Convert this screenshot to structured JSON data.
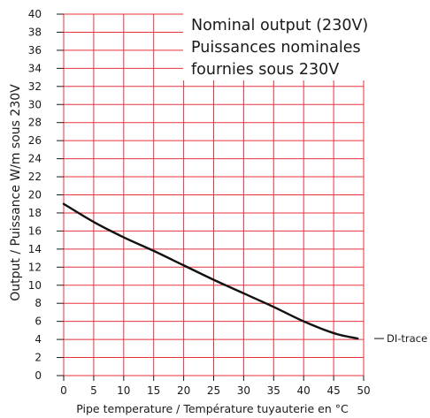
{
  "chart_data": {
    "type": "line",
    "title": "",
    "annotation_lines": [
      "Nominal output (230V)",
      "Puissances nominales",
      "fournies sous 230V"
    ],
    "xlabel": "Pipe temperature  /  Température tuyauterie en °C",
    "ylabel": "Output  /  Puissance W/m sous 230V",
    "xlim": [
      0,
      50
    ],
    "ylim": [
      0,
      40
    ],
    "x_ticks": [
      0,
      5,
      10,
      15,
      20,
      25,
      30,
      35,
      40,
      45,
      50
    ],
    "y_ticks": [
      0,
      2,
      4,
      6,
      8,
      10,
      12,
      14,
      16,
      18,
      20,
      22,
      24,
      26,
      28,
      30,
      32,
      34,
      36,
      38,
      40
    ],
    "grid": true,
    "colors": {
      "grid": "#e8323c",
      "line": "#111111",
      "text": "#1a1a1a"
    },
    "series": [
      {
        "name": "DI-trace",
        "x": [
          0,
          5,
          10,
          15,
          20,
          25,
          30,
          35,
          40,
          45,
          49
        ],
        "y": [
          19.0,
          17.0,
          15.3,
          13.8,
          12.2,
          10.6,
          9.1,
          7.6,
          6.0,
          4.7,
          4.1
        ]
      }
    ]
  }
}
